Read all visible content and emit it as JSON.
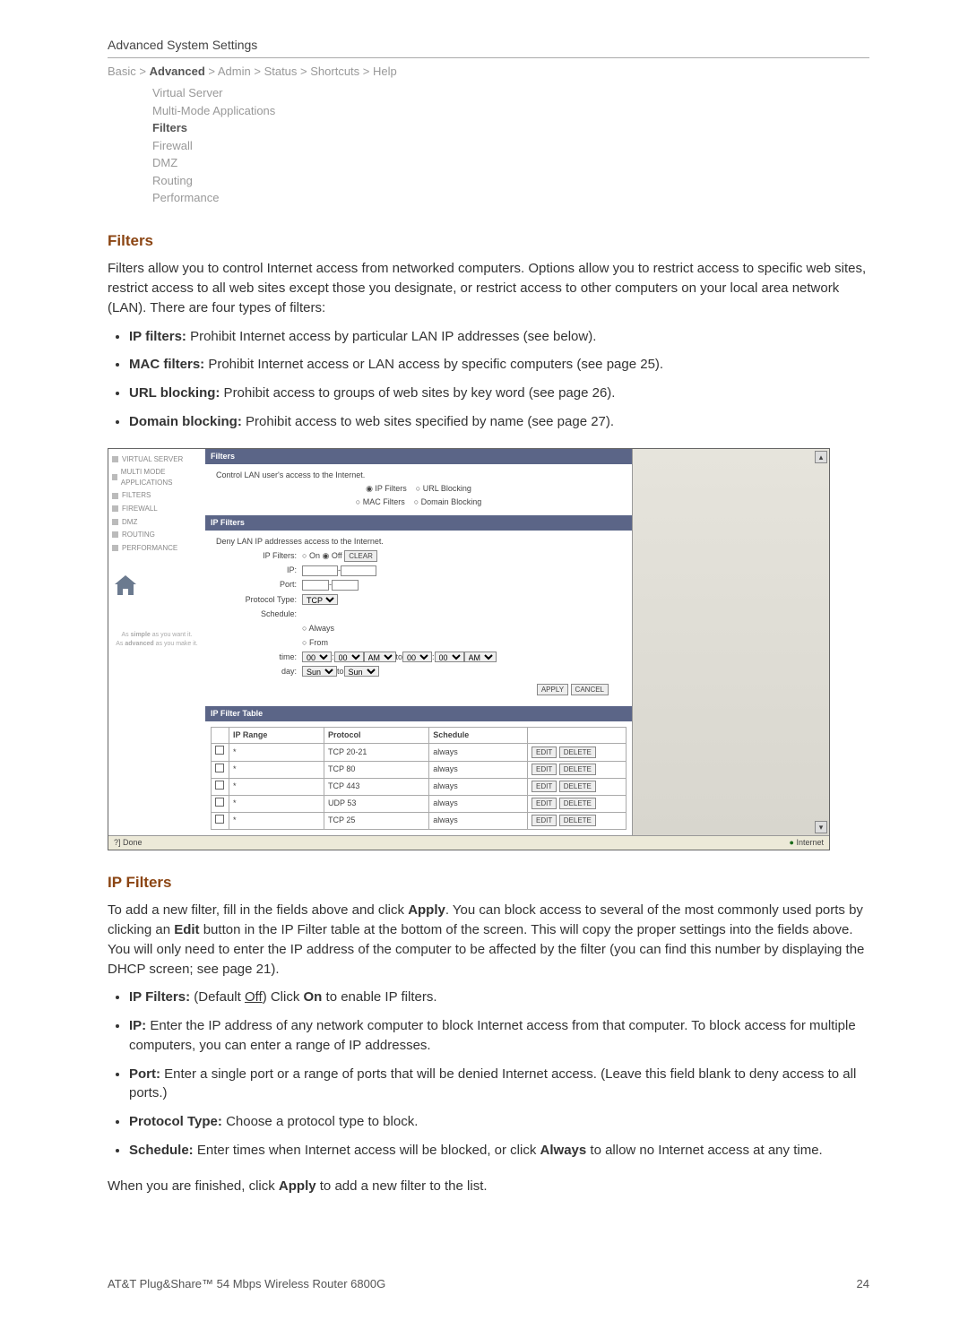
{
  "section_title": "Advanced System Settings",
  "breadcrumb": [
    "Basic",
    "Advanced",
    "Admin",
    "Status",
    "Shortcuts",
    "Help"
  ],
  "breadcrumb_active_index": 1,
  "subnav": [
    "Virtual Server",
    "Multi-Mode Applications",
    "Filters",
    "Firewall",
    "DMZ",
    "Routing",
    "Performance"
  ],
  "subnav_active_index": 2,
  "filters_heading": "Filters",
  "filters_intro": "Filters allow you to control Internet access from networked computers. Options allow you to restrict access to specific web sites, restrict access to all web sites except those you designate, or restrict access to other computers on your local area network (LAN). There are four types of filters:",
  "filter_types": [
    {
      "term": "IP filters:",
      "desc": " Prohibit Internet access by particular LAN IP addresses (see below)."
    },
    {
      "term": "MAC filters:",
      "desc": " Prohibit Internet access or LAN access by specific computers (see page 25)."
    },
    {
      "term": "URL blocking:",
      "desc": " Prohibit access to groups of web sites by key word (see page 26)."
    },
    {
      "term": "Domain blocking:",
      "desc": " Prohibit access to web sites specified by name (see page 27)."
    }
  ],
  "screenshot": {
    "sidebar_items": [
      "VIRTUAL SERVER",
      "MULTI MODE APPLICATIONS",
      "FILTERS",
      "FIREWALL",
      "DMZ",
      "ROUTING",
      "PERFORMANCE"
    ],
    "slogan1": "As simple as you want it.",
    "slogan2": "As advanced as you make it.",
    "bar_filters": "Filters",
    "control_text": "Control LAN user's access to the Internet.",
    "radio_ip_filters": "IP Filters",
    "radio_url_blocking": "URL Blocking",
    "radio_mac_filters": "MAC Filters",
    "radio_domain_blocking": "Domain Blocking",
    "bar_ip_filters": "IP Filters",
    "deny_text": "Deny LAN IP addresses access to the Internet.",
    "ipfilters_label": "IP Filters:",
    "on_label": "On",
    "off_label": "Off",
    "clear_btn": "CLEAR",
    "ip_label": "IP:",
    "port_label": "Port:",
    "protocol_label": "Protocol Type:",
    "protocol_value": "TCP",
    "schedule_label": "Schedule:",
    "always_label": "Always",
    "from_label": "From",
    "time_label": "time:",
    "to_label": "to",
    "day_label": "day:",
    "time_vals": {
      "h": "00",
      "m": "00",
      "ap": "AM",
      "day": "Sun"
    },
    "apply_btn": "APPLY",
    "cancel_btn": "CANCEL",
    "bar_ip_filter_table": "IP Filter Table",
    "table_headers": [
      "",
      "IP Range",
      "Protocol",
      "Schedule",
      ""
    ],
    "table_rows": [
      {
        "ip": "*",
        "proto": "TCP 20-21",
        "sched": "always"
      },
      {
        "ip": "*",
        "proto": "TCP 80",
        "sched": "always"
      },
      {
        "ip": "*",
        "proto": "TCP 443",
        "sched": "always"
      },
      {
        "ip": "*",
        "proto": "UDP 53",
        "sched": "always"
      },
      {
        "ip": "*",
        "proto": "TCP 25",
        "sched": "always"
      }
    ],
    "edit_btn": "EDIT",
    "delete_btn": "DELETE",
    "status_done": "Done",
    "status_internet": "Internet"
  },
  "ipfilters_heading": "IP Filters",
  "ipfilters_intro_parts": {
    "p1": "To add a new filter, fill in the fields above and click ",
    "apply": "Apply",
    "p2": ". You can block access to several of the most commonly used ports by clicking an ",
    "edit": "Edit",
    "p3": " button in the IP Filter table at the bottom of the screen. This will copy the proper settings into the fields above. You will only need to enter the IP address of the computer to be affected by the filter (you can find this number by displaying the DHCP screen; see page 21)."
  },
  "ipfilters_list": [
    {
      "term": "IP Filters:",
      "pre": " (Default ",
      "under": "Off",
      "post": ") Click ",
      "bold2": "On",
      "tail": " to enable IP filters."
    },
    {
      "term": "IP:",
      "desc": " Enter the IP address of any network computer to block Internet access from that computer. To block access for multiple computers, you can enter a range of IP addresses."
    },
    {
      "term": "Port:",
      "desc": " Enter a single port or a range of ports that will be denied Internet access. (Leave this field blank to deny access to all ports.)"
    },
    {
      "term": "Protocol Type:",
      "desc": " Choose a protocol type to block."
    },
    {
      "term": "Schedule:",
      "pre": " Enter times when Internet access will be blocked, or click ",
      "bold2": "Always",
      "tail": " to allow no Internet access at any time."
    }
  ],
  "finish_parts": {
    "p1": "When you are finished, click ",
    "apply": "Apply",
    "p2": " to add a new filter to the list."
  },
  "footer": {
    "product": "AT&T Plug&Share™ 54 Mbps Wireless Router 6800G",
    "page": "24"
  }
}
